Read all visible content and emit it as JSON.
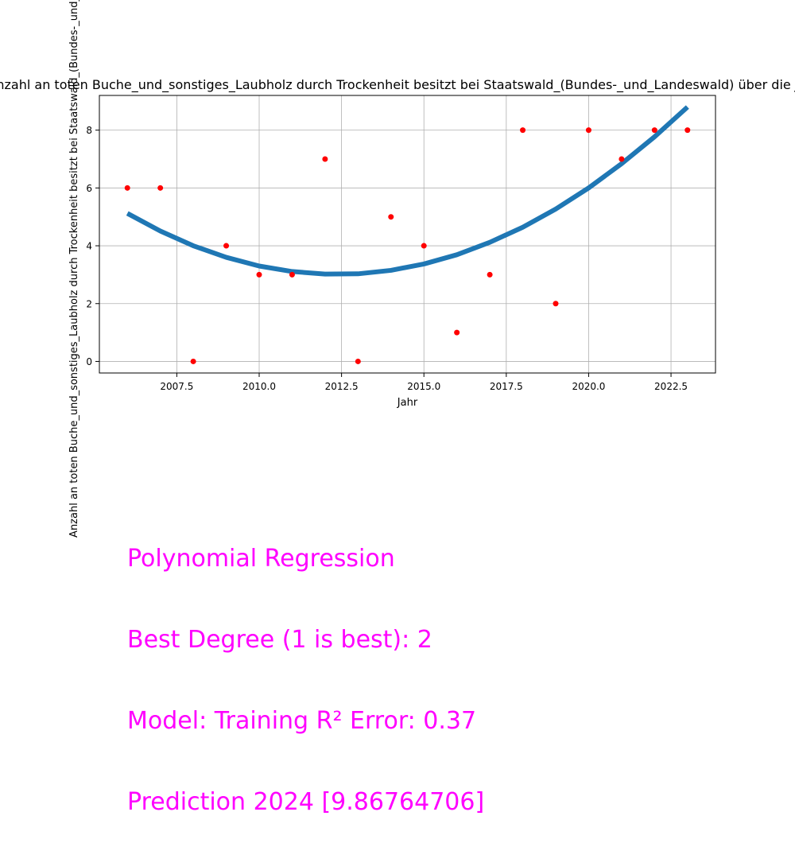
{
  "chart_data": {
    "type": "scatter",
    "title": "Anzahl an toten Buche_und_sonstiges_Laubholz durch Trockenheit besitzt bei Staatswald_(Bundes-_und_Landeswald) über die Jahre",
    "xlabel": "Jahr",
    "ylabel": "Anzahl an toten Buche_und_sonstiges_Laubholz durch Trockenheit besitzt bei Staatswald_(Bundes-_und_Landeswald)",
    "xlim": [
      2005.15,
      2023.85
    ],
    "ylim": [
      -0.4,
      9.2
    ],
    "grid": true,
    "x_ticks": [
      2007.5,
      2010.0,
      2012.5,
      2015.0,
      2017.5,
      2020.0,
      2022.5
    ],
    "y_ticks": [
      0,
      2,
      4,
      6,
      8
    ],
    "series": [
      {
        "kind": "points",
        "color": "#ff0000",
        "x": [
          2006,
          2007,
          2008,
          2009,
          2010,
          2011,
          2012,
          2013,
          2014,
          2015,
          2016,
          2017,
          2018,
          2019,
          2020,
          2021,
          2022,
          2023
        ],
        "y": [
          6,
          6,
          0,
          4,
          3,
          3,
          7,
          0,
          5,
          4,
          1,
          3,
          8,
          2,
          8,
          7,
          8,
          8
        ]
      },
      {
        "kind": "fit",
        "color": "#1f77b4",
        "x": [
          2006,
          2007,
          2008,
          2009,
          2010,
          2011,
          2012,
          2013,
          2014,
          2015,
          2016,
          2017,
          2018,
          2019,
          2020,
          2021,
          2022,
          2023
        ],
        "y": [
          5.12,
          4.51,
          4.0,
          3.6,
          3.3,
          3.11,
          3.02,
          3.03,
          3.15,
          3.37,
          3.69,
          4.12,
          4.64,
          5.27,
          6.0,
          6.84,
          7.77,
          8.8
        ]
      }
    ]
  },
  "annotation": {
    "color": "#ff00ff",
    "lines": [
      "Polynomial Regression",
      "Best Degree (1 is best): 2",
      "Model: Training R² Error: 0.37",
      "Prediction 2024 [9.86764706]"
    ]
  }
}
